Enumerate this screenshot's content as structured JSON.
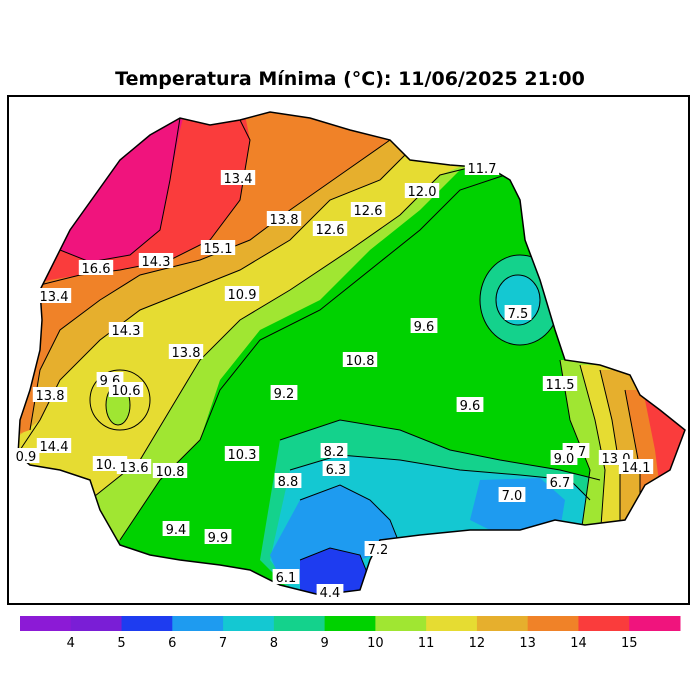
{
  "title": "Temperatura Mínima (°C): 11/06/2025 21:00",
  "legend": {
    "ticks": [
      "4",
      "5",
      "6",
      "7",
      "8",
      "9",
      "10",
      "11",
      "12",
      "13",
      "14",
      "15"
    ],
    "colors": [
      "#8c1ad6",
      "#7a1ed6",
      "#1e3cf0",
      "#1e9bf0",
      "#14c8d2",
      "#14d28c",
      "#00d200",
      "#a0e632",
      "#e6dc32",
      "#e6af2d",
      "#f08228",
      "#fa3c3c",
      "#f0147d"
    ]
  },
  "contour_labels": [
    {
      "text": "13.4"
    },
    {
      "text": "11.7"
    },
    {
      "text": "12.0"
    },
    {
      "text": "12.6"
    },
    {
      "text": "13.8"
    },
    {
      "text": "12.6"
    },
    {
      "text": "15.1"
    },
    {
      "text": "14.3"
    },
    {
      "text": "16.6"
    },
    {
      "text": "13.4"
    },
    {
      "text": "10.9"
    },
    {
      "text": "14.3"
    },
    {
      "text": "13.8"
    },
    {
      "text": "9.6"
    },
    {
      "text": "7.5"
    },
    {
      "text": "10.8"
    },
    {
      "text": "9.6"
    },
    {
      "text": "10.6"
    },
    {
      "text": "11.5"
    },
    {
      "text": "13.8"
    },
    {
      "text": "9.2"
    },
    {
      "text": "9.6"
    },
    {
      "text": "14.4"
    },
    {
      "text": "0.9"
    },
    {
      "text": "10.1"
    },
    {
      "text": "13.6"
    },
    {
      "text": "10.8"
    },
    {
      "text": "10.3"
    },
    {
      "text": "8.2"
    },
    {
      "text": "6.3"
    },
    {
      "text": "7.7"
    },
    {
      "text": "9.0"
    },
    {
      "text": "13.0"
    },
    {
      "text": "14.1"
    },
    {
      "text": "8.8"
    },
    {
      "text": "6.7"
    },
    {
      "text": "7.0"
    },
    {
      "text": "9.4"
    },
    {
      "text": "9.9"
    },
    {
      "text": "7.2"
    },
    {
      "text": "6.1"
    },
    {
      "text": "4.4"
    }
  ]
}
